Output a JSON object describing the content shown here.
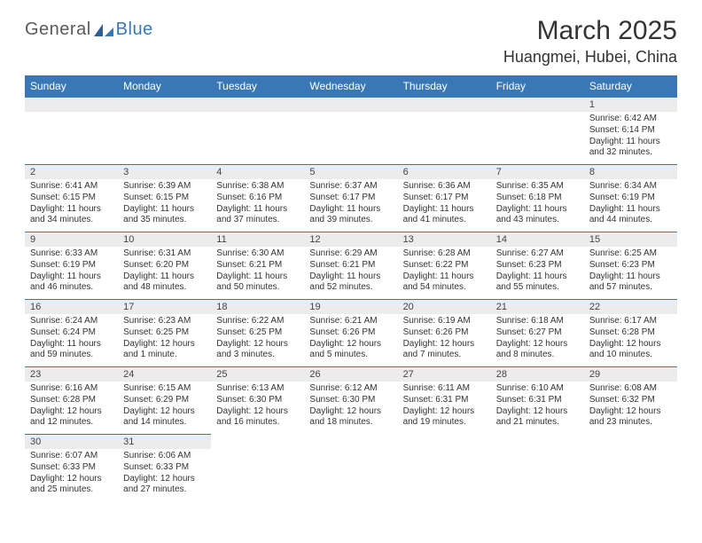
{
  "logo": {
    "part1": "General",
    "part2": "Blue"
  },
  "title": "March 2025",
  "location": "Huangmei, Hubei, China",
  "colors": {
    "header_bg": "#3a78b5",
    "header_text": "#ffffff",
    "daynum_bg": "#ececec",
    "border": "#3a78b5",
    "text": "#333333",
    "logo_gray": "#5a5a5a",
    "logo_blue": "#3a78b5"
  },
  "weekdays": [
    "Sunday",
    "Monday",
    "Tuesday",
    "Wednesday",
    "Thursday",
    "Friday",
    "Saturday"
  ],
  "weeks": [
    [
      null,
      null,
      null,
      null,
      null,
      null,
      {
        "n": "1",
        "sr": "Sunrise: 6:42 AM",
        "ss": "Sunset: 6:14 PM",
        "dl": "Daylight: 11 hours and 32 minutes."
      }
    ],
    [
      {
        "n": "2",
        "sr": "Sunrise: 6:41 AM",
        "ss": "Sunset: 6:15 PM",
        "dl": "Daylight: 11 hours and 34 minutes."
      },
      {
        "n": "3",
        "sr": "Sunrise: 6:39 AM",
        "ss": "Sunset: 6:15 PM",
        "dl": "Daylight: 11 hours and 35 minutes."
      },
      {
        "n": "4",
        "sr": "Sunrise: 6:38 AM",
        "ss": "Sunset: 6:16 PM",
        "dl": "Daylight: 11 hours and 37 minutes."
      },
      {
        "n": "5",
        "sr": "Sunrise: 6:37 AM",
        "ss": "Sunset: 6:17 PM",
        "dl": "Daylight: 11 hours and 39 minutes."
      },
      {
        "n": "6",
        "sr": "Sunrise: 6:36 AM",
        "ss": "Sunset: 6:17 PM",
        "dl": "Daylight: 11 hours and 41 minutes."
      },
      {
        "n": "7",
        "sr": "Sunrise: 6:35 AM",
        "ss": "Sunset: 6:18 PM",
        "dl": "Daylight: 11 hours and 43 minutes."
      },
      {
        "n": "8",
        "sr": "Sunrise: 6:34 AM",
        "ss": "Sunset: 6:19 PM",
        "dl": "Daylight: 11 hours and 44 minutes."
      }
    ],
    [
      {
        "n": "9",
        "sr": "Sunrise: 6:33 AM",
        "ss": "Sunset: 6:19 PM",
        "dl": "Daylight: 11 hours and 46 minutes."
      },
      {
        "n": "10",
        "sr": "Sunrise: 6:31 AM",
        "ss": "Sunset: 6:20 PM",
        "dl": "Daylight: 11 hours and 48 minutes."
      },
      {
        "n": "11",
        "sr": "Sunrise: 6:30 AM",
        "ss": "Sunset: 6:21 PM",
        "dl": "Daylight: 11 hours and 50 minutes."
      },
      {
        "n": "12",
        "sr": "Sunrise: 6:29 AM",
        "ss": "Sunset: 6:21 PM",
        "dl": "Daylight: 11 hours and 52 minutes."
      },
      {
        "n": "13",
        "sr": "Sunrise: 6:28 AM",
        "ss": "Sunset: 6:22 PM",
        "dl": "Daylight: 11 hours and 54 minutes."
      },
      {
        "n": "14",
        "sr": "Sunrise: 6:27 AM",
        "ss": "Sunset: 6:23 PM",
        "dl": "Daylight: 11 hours and 55 minutes."
      },
      {
        "n": "15",
        "sr": "Sunrise: 6:25 AM",
        "ss": "Sunset: 6:23 PM",
        "dl": "Daylight: 11 hours and 57 minutes."
      }
    ],
    [
      {
        "n": "16",
        "sr": "Sunrise: 6:24 AM",
        "ss": "Sunset: 6:24 PM",
        "dl": "Daylight: 11 hours and 59 minutes."
      },
      {
        "n": "17",
        "sr": "Sunrise: 6:23 AM",
        "ss": "Sunset: 6:25 PM",
        "dl": "Daylight: 12 hours and 1 minute."
      },
      {
        "n": "18",
        "sr": "Sunrise: 6:22 AM",
        "ss": "Sunset: 6:25 PM",
        "dl": "Daylight: 12 hours and 3 minutes."
      },
      {
        "n": "19",
        "sr": "Sunrise: 6:21 AM",
        "ss": "Sunset: 6:26 PM",
        "dl": "Daylight: 12 hours and 5 minutes."
      },
      {
        "n": "20",
        "sr": "Sunrise: 6:19 AM",
        "ss": "Sunset: 6:26 PM",
        "dl": "Daylight: 12 hours and 7 minutes."
      },
      {
        "n": "21",
        "sr": "Sunrise: 6:18 AM",
        "ss": "Sunset: 6:27 PM",
        "dl": "Daylight: 12 hours and 8 minutes."
      },
      {
        "n": "22",
        "sr": "Sunrise: 6:17 AM",
        "ss": "Sunset: 6:28 PM",
        "dl": "Daylight: 12 hours and 10 minutes."
      }
    ],
    [
      {
        "n": "23",
        "sr": "Sunrise: 6:16 AM",
        "ss": "Sunset: 6:28 PM",
        "dl": "Daylight: 12 hours and 12 minutes."
      },
      {
        "n": "24",
        "sr": "Sunrise: 6:15 AM",
        "ss": "Sunset: 6:29 PM",
        "dl": "Daylight: 12 hours and 14 minutes."
      },
      {
        "n": "25",
        "sr": "Sunrise: 6:13 AM",
        "ss": "Sunset: 6:30 PM",
        "dl": "Daylight: 12 hours and 16 minutes."
      },
      {
        "n": "26",
        "sr": "Sunrise: 6:12 AM",
        "ss": "Sunset: 6:30 PM",
        "dl": "Daylight: 12 hours and 18 minutes."
      },
      {
        "n": "27",
        "sr": "Sunrise: 6:11 AM",
        "ss": "Sunset: 6:31 PM",
        "dl": "Daylight: 12 hours and 19 minutes."
      },
      {
        "n": "28",
        "sr": "Sunrise: 6:10 AM",
        "ss": "Sunset: 6:31 PM",
        "dl": "Daylight: 12 hours and 21 minutes."
      },
      {
        "n": "29",
        "sr": "Sunrise: 6:08 AM",
        "ss": "Sunset: 6:32 PM",
        "dl": "Daylight: 12 hours and 23 minutes."
      }
    ],
    [
      {
        "n": "30",
        "sr": "Sunrise: 6:07 AM",
        "ss": "Sunset: 6:33 PM",
        "dl": "Daylight: 12 hours and 25 minutes."
      },
      {
        "n": "31",
        "sr": "Sunrise: 6:06 AM",
        "ss": "Sunset: 6:33 PM",
        "dl": "Daylight: 12 hours and 27 minutes."
      },
      null,
      null,
      null,
      null,
      null
    ]
  ]
}
